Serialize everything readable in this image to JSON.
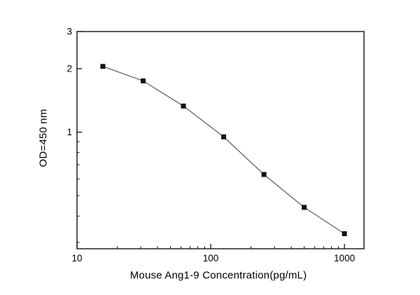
{
  "chart_data": {
    "type": "scatter",
    "series_name": "standard-curve",
    "x": [
      15.6,
      31.25,
      62.5,
      125,
      250,
      500,
      1000
    ],
    "y": [
      2.05,
      1.75,
      1.33,
      0.95,
      0.63,
      0.44,
      0.33
    ],
    "xlabel": "Mouse Ang1-9 Concentration(pg/mL)",
    "ylabel": "OD=450 nm",
    "xscale": "log",
    "yscale": "log",
    "xlim": [
      10,
      1400
    ],
    "ylim": [
      0.28,
      3
    ],
    "x_tick_values": [
      10,
      100,
      1000
    ],
    "x_tick_labels": [
      "10",
      "100",
      "1000"
    ],
    "y_tick_values": [
      1,
      2,
      3
    ],
    "y_tick_labels": [
      "1",
      "2",
      "3"
    ],
    "marker": "filled-square",
    "marker_color": "#111111",
    "line_color": "#4d4d4d",
    "axis_color": "#000000",
    "grid": false,
    "legend": null,
    "title": ""
  }
}
